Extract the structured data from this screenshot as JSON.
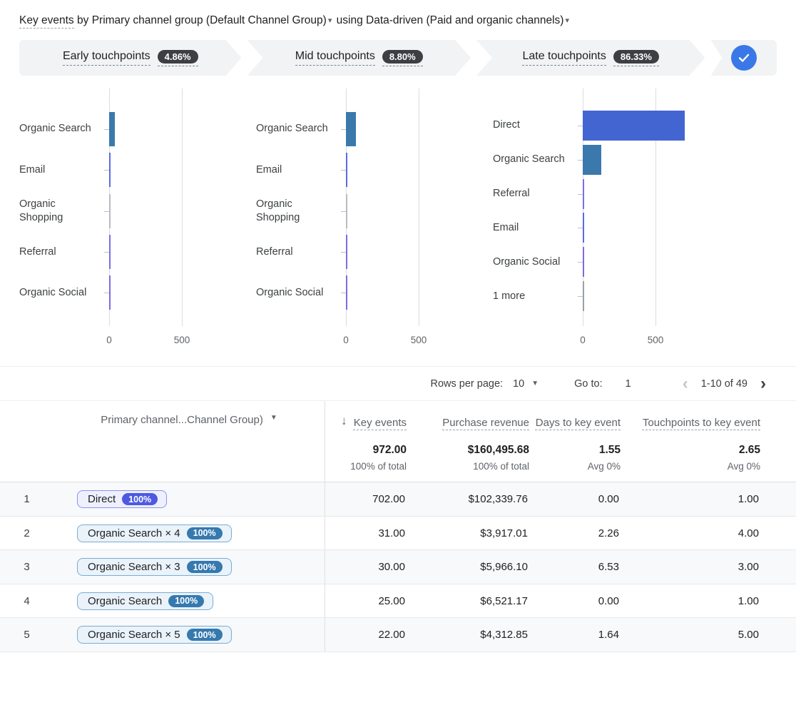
{
  "title": {
    "metric": "Key events",
    "by": "by",
    "dimension": "Primary channel group (Default Channel Group)",
    "using": "using",
    "model": "Data-driven (Paid and organic channels)",
    "caret": "▾"
  },
  "funnel": {
    "stages": [
      {
        "label": "Early touchpoints",
        "pct": "4.86%"
      },
      {
        "label": "Mid touchpoints",
        "pct": "8.80%"
      },
      {
        "label": "Late touchpoints",
        "pct": "86.33%"
      }
    ],
    "check_color": "#3b78e7"
  },
  "chart_data": [
    {
      "type": "bar",
      "orientation": "horizontal",
      "title": "Early touchpoints",
      "categories": [
        "Organic Search",
        "Email",
        "Organic Shopping",
        "Referral",
        "Organic Social"
      ],
      "values": [
        40,
        5,
        1,
        3,
        3
      ],
      "colors": [
        "#3b79ad",
        "#5b6be0",
        "#b7bcc2",
        "#7b6ee6",
        "#8069e2"
      ],
      "xlabel": "",
      "ylabel": "",
      "xlim": [
        0,
        800
      ],
      "xticks": [
        0,
        500
      ],
      "grid": true,
      "legend": false
    },
    {
      "type": "bar",
      "orientation": "horizontal",
      "title": "Mid touchpoints",
      "categories": [
        "Organic Search",
        "Email",
        "Organic Shopping",
        "Referral",
        "Organic Social"
      ],
      "values": [
        70,
        6,
        1,
        5,
        4
      ],
      "colors": [
        "#3b79ad",
        "#5b6be0",
        "#b7bcc2",
        "#7b6ee6",
        "#8069e2"
      ],
      "xlabel": "",
      "ylabel": "",
      "xlim": [
        0,
        800
      ],
      "xticks": [
        0,
        500
      ],
      "grid": true,
      "legend": false
    },
    {
      "type": "bar",
      "orientation": "horizontal",
      "title": "Late touchpoints",
      "categories": [
        "Direct",
        "Organic Search",
        "Referral",
        "Email",
        "Organic Social",
        "1 more"
      ],
      "values": [
        700,
        128,
        5,
        6,
        4,
        1
      ],
      "colors": [
        "#4365d2",
        "#3b79ad",
        "#7b6ee6",
        "#5b6be0",
        "#8069e2",
        "#9aa0a6"
      ],
      "xlabel": "",
      "ylabel": "",
      "xlim": [
        0,
        800
      ],
      "xticks": [
        0,
        500
      ],
      "grid": true,
      "legend": false
    }
  ],
  "pagination": {
    "rows_per_page_label": "Rows per page:",
    "rows_per_page": "10",
    "goto_label": "Go to:",
    "goto_value": "1",
    "range": "1-10 of 49",
    "prev_icon": "‹",
    "next_icon": "›"
  },
  "table": {
    "headers": {
      "dimension": "Primary channel...Channel Group)",
      "sort_icon": "↓",
      "key_events": "Key events",
      "revenue": "Purchase revenue",
      "days": "Days to key event",
      "touchpoints": "Touchpoints to key event"
    },
    "totals": {
      "key_events": "972.00",
      "key_events_sub": "100% of total",
      "revenue": "$160,495.68",
      "revenue_sub": "100% of total",
      "days": "1.55",
      "days_sub": "Avg 0%",
      "touchpoints": "2.65",
      "touchpoints_sub": "Avg 0%"
    },
    "chip_styles": {
      "indigo": {
        "bg": "#eef0fe",
        "border": "#8b93ee",
        "pill": "#4d5ae0"
      },
      "blue": {
        "bg": "#eaf2fa",
        "border": "#7aadd2",
        "pill": "#3579ae"
      }
    },
    "rows": [
      {
        "n": "1",
        "path": "Direct",
        "pct": "100%",
        "chip_style": "indigo",
        "key_events": "702.00",
        "revenue": "$102,339.76",
        "days": "0.00",
        "touchpoints": "1.00"
      },
      {
        "n": "2",
        "path": "Organic Search × 4",
        "pct": "100%",
        "chip_style": "blue",
        "key_events": "31.00",
        "revenue": "$3,917.01",
        "days": "2.26",
        "touchpoints": "4.00"
      },
      {
        "n": "3",
        "path": "Organic Search × 3",
        "pct": "100%",
        "chip_style": "blue",
        "key_events": "30.00",
        "revenue": "$5,966.10",
        "days": "6.53",
        "touchpoints": "3.00"
      },
      {
        "n": "4",
        "path": "Organic Search",
        "pct": "100%",
        "chip_style": "blue",
        "key_events": "25.00",
        "revenue": "$6,521.17",
        "days": "0.00",
        "touchpoints": "1.00"
      },
      {
        "n": "5",
        "path": "Organic Search × 5",
        "pct": "100%",
        "chip_style": "blue",
        "key_events": "22.00",
        "revenue": "$4,312.85",
        "days": "1.64",
        "touchpoints": "5.00"
      }
    ]
  }
}
